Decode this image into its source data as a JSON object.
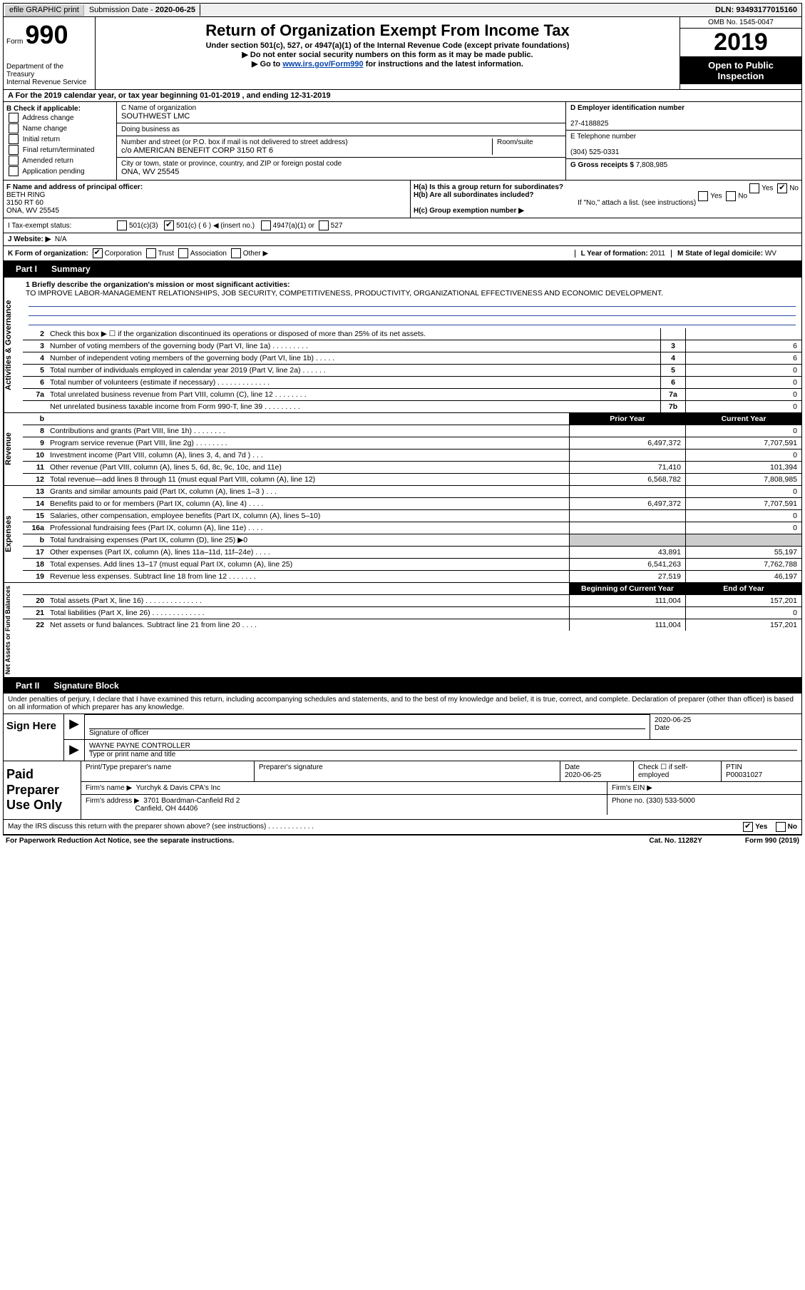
{
  "top": {
    "efile": "efile GRAPHIC print",
    "submission_label": "Submission Date - ",
    "submission_date": "2020-06-25",
    "dln_label": "DLN: ",
    "dln": "93493177015160"
  },
  "header": {
    "form_word": "Form",
    "form_num": "990",
    "dept1": "Department of the Treasury",
    "dept2": "Internal Revenue Service",
    "title": "Return of Organization Exempt From Income Tax",
    "sub1": "Under section 501(c), 527, or 4947(a)(1) of the Internal Revenue Code (except private foundations)",
    "sub2": "▶ Do not enter social security numbers on this form as it may be made public.",
    "sub3_pre": "▶ Go to ",
    "sub3_link": "www.irs.gov/Form990",
    "sub3_post": " for instructions and the latest information.",
    "omb": "OMB No. 1545-0047",
    "year": "2019",
    "badge1": "Open to Public",
    "badge2": "Inspection"
  },
  "row_a": "A For the 2019 calendar year, or tax year beginning 01-01-2019   , and ending 12-31-2019",
  "col_b": {
    "label": "B Check if applicable:",
    "items": [
      "Address change",
      "Name change",
      "Initial return",
      "Final return/terminated",
      "Amended return",
      "Application pending"
    ]
  },
  "col_c": {
    "name_label": "C Name of organization",
    "name": "SOUTHWEST LMC",
    "dba_label": "Doing business as",
    "dba": "",
    "addr_label": "Number and street (or P.O. box if mail is not delivered to street address)",
    "room_label": "Room/suite",
    "addr": "c/o AMERICAN BENEFIT CORP 3150 RT 6",
    "city_label": "City or town, state or province, country, and ZIP or foreign postal code",
    "city": "ONA, WV  25545"
  },
  "col_d": {
    "ein_label": "D Employer identification number",
    "ein": "27-4188825",
    "phone_label": "E Telephone number",
    "phone": "(304) 525-0331",
    "gross_label": "G Gross receipts $ ",
    "gross": "7,808,985"
  },
  "row_f": {
    "f_label": "F  Name and address of principal officer:",
    "f_name": "BETH RING",
    "f_addr1": "3150 RT 60",
    "f_addr2": "ONA, WV  25545",
    "ha_label": "H(a)  Is this a group return for subordinates?",
    "ha_yes": "Yes",
    "ha_no": "No",
    "hb_label": "H(b)  Are all subordinates included?",
    "hb_yes": "Yes",
    "hb_no": "No",
    "hb_note": "If \"No,\" attach a list. (see instructions)",
    "hc_label": "H(c)  Group exemption number ▶"
  },
  "row_i": {
    "label": "I  Tax-exempt status:",
    "opt1": "501(c)(3)",
    "opt2": "501(c) ( 6 ) ◀ (insert no.)",
    "opt3": "4947(a)(1) or",
    "opt4": "527"
  },
  "row_j": {
    "label": "J  Website: ▶",
    "val": "N/A"
  },
  "row_k": {
    "label": "K Form of organization:",
    "opts": [
      "Corporation",
      "Trust",
      "Association",
      "Other ▶"
    ],
    "l_label": "L Year of formation: ",
    "l_val": "2011",
    "m_label": "M State of legal domicile: ",
    "m_val": "WV"
  },
  "part1": {
    "tab": "Part I",
    "title": "Summary"
  },
  "mission": {
    "label": "1  Briefly describe the organization's mission or most significant activities:",
    "text": "TO IMPROVE LABOR-MANAGEMENT RELATIONSHIPS, JOB SECURITY, COMPETITIVENESS, PRODUCTIVITY, ORGANIZATIONAL EFFECTIVENESS AND ECONOMIC DEVELOPMENT."
  },
  "gov_rows": [
    {
      "n": "2",
      "t": "Check this box ▶ ☐  if the organization discontinued its operations or disposed of more than 25% of its net assets.",
      "box": "",
      "v": ""
    },
    {
      "n": "3",
      "t": "Number of voting members of the governing body (Part VI, line 1a)   .    .    .    .    .    .    .    .    .",
      "box": "3",
      "v": "6"
    },
    {
      "n": "4",
      "t": "Number of independent voting members of the governing body (Part VI, line 1b)    .    .    .    .    .",
      "box": "4",
      "v": "6"
    },
    {
      "n": "5",
      "t": "Total number of individuals employed in calendar year 2019 (Part V, line 2a)   .    .    .    .    .    .",
      "box": "5",
      "v": "0"
    },
    {
      "n": "6",
      "t": "Total number of volunteers (estimate if necessary)    .    .    .    .    .    .    .    .    .    .    .    .    .",
      "box": "6",
      "v": "0"
    },
    {
      "n": "7a",
      "t": "Total unrelated business revenue from Part VIII, column (C), line 12    .    .    .    .    .    .    .    .",
      "box": "7a",
      "v": "0"
    },
    {
      "n": "",
      "t": "Net unrelated business taxable income from Form 990-T, line 39    .    .    .    .    .    .    .    .    .",
      "box": "7b",
      "v": "0"
    }
  ],
  "rev_header": {
    "n": "b",
    "t": "",
    "py": "Prior Year",
    "cy": "Current Year"
  },
  "rev_rows": [
    {
      "n": "8",
      "t": "Contributions and grants (Part VIII, line 1h)    .    .    .    .    .    .    .    .",
      "py": "",
      "cy": "0"
    },
    {
      "n": "9",
      "t": "Program service revenue (Part VIII, line 2g)    .    .    .    .    .    .    .    .",
      "py": "6,497,372",
      "cy": "7,707,591"
    },
    {
      "n": "10",
      "t": "Investment income (Part VIII, column (A), lines 3, 4, and 7d )    .    .    .",
      "py": "",
      "cy": "0"
    },
    {
      "n": "11",
      "t": "Other revenue (Part VIII, column (A), lines 5, 6d, 8c, 9c, 10c, and 11e)",
      "py": "71,410",
      "cy": "101,394"
    },
    {
      "n": "12",
      "t": "Total revenue—add lines 8 through 11 (must equal Part VIII, column (A), line 12)",
      "py": "6,568,782",
      "cy": "7,808,985"
    }
  ],
  "exp_rows": [
    {
      "n": "13",
      "t": "Grants and similar amounts paid (Part IX, column (A), lines 1–3 )    .    .    .",
      "py": "",
      "cy": "0"
    },
    {
      "n": "14",
      "t": "Benefits paid to or for members (Part IX, column (A), line 4)    .    .    .    .",
      "py": "6,497,372",
      "cy": "7,707,591"
    },
    {
      "n": "15",
      "t": "Salaries, other compensation, employee benefits (Part IX, column (A), lines 5–10)",
      "py": "",
      "cy": "0"
    },
    {
      "n": "16a",
      "t": "Professional fundraising fees (Part IX, column (A), line 11e)    .    .    .    .",
      "py": "",
      "cy": "0"
    },
    {
      "n": "b",
      "t": "Total fundraising expenses (Part IX, column (D), line 25) ▶0",
      "py": "",
      "cy": "",
      "shaded": true
    },
    {
      "n": "17",
      "t": "Other expenses (Part IX, column (A), lines 11a–11d, 11f–24e)    .    .    .    .",
      "py": "43,891",
      "cy": "55,197"
    },
    {
      "n": "18",
      "t": "Total expenses. Add lines 13–17 (must equal Part IX, column (A), line 25)",
      "py": "6,541,263",
      "cy": "7,762,788"
    },
    {
      "n": "19",
      "t": "Revenue less expenses. Subtract line 18 from line 12   .    .    .    .    .    .    .",
      "py": "27,519",
      "cy": "46,197"
    }
  ],
  "net_header": {
    "py": "Beginning of Current Year",
    "cy": "End of Year"
  },
  "net_rows": [
    {
      "n": "20",
      "t": "Total assets (Part X, line 16)   .    .    .    .    .    .    .    .    .    .    .    .    .    .",
      "py": "111,004",
      "cy": "157,201"
    },
    {
      "n": "21",
      "t": "Total liabilities (Part X, line 26)   .    .    .    .    .    .    .    .    .    .    .    .    .",
      "py": "",
      "cy": "0"
    },
    {
      "n": "22",
      "t": "Net assets or fund balances. Subtract line 21 from line 20   .    .    .    .",
      "py": "111,004",
      "cy": "157,201"
    }
  ],
  "part2": {
    "tab": "Part II",
    "title": "Signature Block"
  },
  "sig_decl": "Under penalties of perjury, I declare that I have examined this return, including accompanying schedules and statements, and to the best of my knowledge and belief, it is true, correct, and complete. Declaration of preparer (other than officer) is based on all information of which preparer has any knowledge.",
  "sign": {
    "label": "Sign Here",
    "sig_label": "Signature of officer",
    "date_label": "Date",
    "date": "2020-06-25",
    "name": "WAYNE PAYNE CONTROLLER",
    "name_label": "Type or print name and title"
  },
  "paid": {
    "label": "Paid Preparer Use Only",
    "h1": "Print/Type preparer's name",
    "h2": "Preparer's signature",
    "h3": "Date",
    "h3v": "2020-06-25",
    "h4": "Check ☐ if self-employed",
    "h5": "PTIN",
    "h5v": "P00031027",
    "firm_label": "Firm's name    ▶",
    "firm": "Yurchyk & Davis CPA's Inc",
    "ein_label": "Firm's EIN ▶",
    "addr_label": "Firm's address ▶",
    "addr1": "3701 Boardman-Canfield Rd 2",
    "addr2": "Canfield, OH  44406",
    "phone_label": "Phone no. ",
    "phone": "(330) 533-5000"
  },
  "discuss": {
    "text": "May the IRS discuss this return with the preparer shown above? (see instructions)    .    .    .    .    .    .    .    .    .    .    .    .",
    "yes": "Yes",
    "no": "No"
  },
  "footer": {
    "left": "For Paperwork Reduction Act Notice, see the separate instructions.",
    "center": "Cat. No. 11282Y",
    "right": "Form 990 (2019)"
  },
  "vlabels": {
    "gov": "Activities & Governance",
    "rev": "Revenue",
    "exp": "Expenses",
    "net": "Net Assets or Fund Balances"
  }
}
